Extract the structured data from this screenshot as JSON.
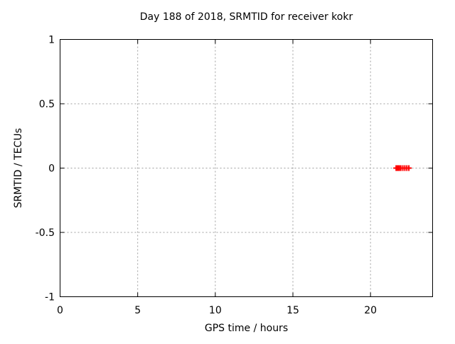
{
  "window": {
    "background": "#ffffff"
  },
  "chart_data": {
    "type": "scatter",
    "title": "Day 188 of 2018, SRMTID for receiver kokr",
    "xlabel": "GPS time / hours",
    "ylabel": "SRMTID / TECUs",
    "xlim": [
      0,
      24
    ],
    "ylim": [
      -1,
      1
    ],
    "x_ticks": [
      0,
      5,
      10,
      15,
      20
    ],
    "y_ticks": [
      1,
      0.5,
      0,
      -0.5,
      -1
    ],
    "x_tick_labels": [
      "0",
      "5",
      "10",
      "15",
      "20"
    ],
    "y_tick_labels": [
      "1",
      "0.5",
      "0",
      "-0.5",
      "-1"
    ],
    "grid": true,
    "grid_x_values": [
      5,
      10,
      15,
      20
    ],
    "grid_y_values": [
      0.5,
      0,
      -0.5
    ],
    "legend_position": "none",
    "series": [
      {
        "name": "SRMTID",
        "marker": "plus",
        "color": "#ff0000",
        "x": [
          21.65,
          21.7,
          21.74,
          21.78,
          21.82,
          21.86,
          21.95,
          22.08,
          22.21,
          22.34,
          22.47
        ],
        "y": [
          0,
          0,
          0,
          0,
          0,
          0,
          0,
          0,
          0,
          0,
          0
        ]
      }
    ]
  },
  "colors": {
    "background": "#ffffff",
    "axis": "#000000",
    "grid": "#9e9e9e",
    "text": "#000000",
    "marker": "#ff0000"
  }
}
